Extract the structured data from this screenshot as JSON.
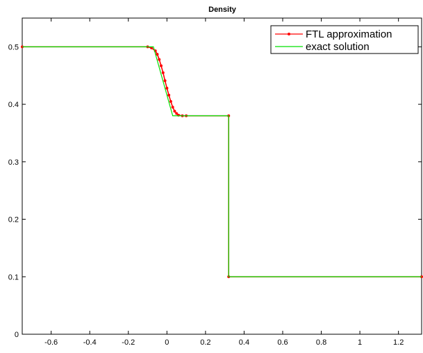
{
  "chart_data": {
    "type": "line",
    "title": "Density",
    "xlabel": "",
    "ylabel": "",
    "xlim": [
      -0.75,
      1.32
    ],
    "ylim": [
      0,
      0.55
    ],
    "xticks": [
      -0.6,
      -0.4,
      -0.2,
      0,
      0.2,
      0.4,
      0.6,
      0.8,
      1,
      1.2
    ],
    "xtick_labels": [
      "-0.6",
      "-0.4",
      "-0.2",
      "0",
      "0.2",
      "0.4",
      "0.6",
      "0.8",
      "1",
      "1.2"
    ],
    "yticks": [
      0,
      0.1,
      0.2,
      0.3,
      0.4,
      0.5
    ],
    "ytick_labels": [
      "0",
      "0.1",
      "0.2",
      "0.3",
      "0.4",
      "0.5"
    ],
    "grid": false,
    "legend_position": "top-right",
    "series": [
      {
        "name": "FTL approximation",
        "color": "#ff0000",
        "marker": "dot",
        "x": [
          -0.75,
          -0.1,
          -0.08,
          -0.06,
          -0.05,
          -0.04,
          -0.03,
          -0.02,
          -0.01,
          0.0,
          0.01,
          0.02,
          0.03,
          0.04,
          0.05,
          0.06,
          0.08,
          0.1,
          0.32,
          0.32,
          1.32
        ],
        "y": [
          0.5,
          0.5,
          0.498,
          0.493,
          0.487,
          0.478,
          0.467,
          0.455,
          0.441,
          0.428,
          0.416,
          0.405,
          0.395,
          0.388,
          0.384,
          0.381,
          0.38,
          0.38,
          0.38,
          0.1,
          0.1
        ]
      },
      {
        "name": "exact solution",
        "color": "#00e000",
        "marker": "none",
        "x": [
          -0.75,
          -0.07,
          0.03,
          0.32,
          0.32,
          1.32
        ],
        "y": [
          0.5,
          0.5,
          0.38,
          0.38,
          0.1,
          0.1
        ]
      }
    ]
  }
}
